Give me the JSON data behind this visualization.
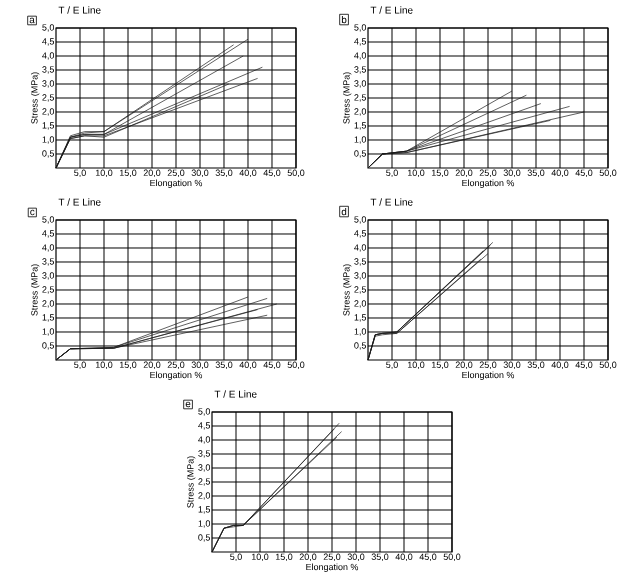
{
  "chart_data": [
    {
      "type": "line",
      "title": "T / E Line",
      "xlabel": "Elongation %",
      "ylabel": "Stress (MPa)",
      "annotations": [
        "a"
      ],
      "grid": true,
      "xlim": [
        0,
        50
      ],
      "ylim": [
        0,
        5
      ],
      "xticks": [
        {
          "value": 5,
          "label": "5,0"
        },
        {
          "value": 10,
          "label": "10,0"
        },
        {
          "value": 15,
          "label": "15,0"
        },
        {
          "value": 20,
          "label": "20,0"
        },
        {
          "value": 25,
          "label": "25,0"
        },
        {
          "value": 30,
          "label": "30,0"
        },
        {
          "value": 35,
          "label": "35,0"
        },
        {
          "value": 40,
          "label": "40,0"
        },
        {
          "value": 45,
          "label": "45,0"
        },
        {
          "value": 50,
          "label": "50,0"
        }
      ],
      "yticks": [
        {
          "value": 0.5,
          "label": "0,5"
        },
        {
          "value": 1,
          "label": "1,0"
        },
        {
          "value": 1.5,
          "label": "1,5"
        },
        {
          "value": 2,
          "label": "2,0"
        },
        {
          "value": 2.5,
          "label": "2,5"
        },
        {
          "value": 3,
          "label": "3,0"
        },
        {
          "value": 3.5,
          "label": "3,5"
        },
        {
          "value": 4,
          "label": "4,0"
        },
        {
          "value": 4.5,
          "label": "4,5"
        },
        {
          "value": 5,
          "label": "5,0"
        }
      ],
      "series": [
        {
          "color": "#1a1a1a",
          "x": [
            0,
            3,
            6,
            10,
            37
          ],
          "values": [
            0,
            1.15,
            1.3,
            1.3,
            4.4
          ]
        },
        {
          "color": "#1a1a1a",
          "x": [
            0,
            3,
            6,
            10,
            40
          ],
          "values": [
            0,
            1.1,
            1.25,
            1.3,
            4.6
          ]
        },
        {
          "color": "#1a1a1a",
          "x": [
            0,
            3,
            6,
            10,
            39
          ],
          "values": [
            0,
            1.1,
            1.2,
            1.2,
            4.0
          ]
        },
        {
          "color": "#1a1a1a",
          "x": [
            0,
            3,
            6,
            10,
            43
          ],
          "values": [
            0,
            1.1,
            1.2,
            1.2,
            3.6
          ]
        },
        {
          "color": "#1a1a1a",
          "x": [
            0,
            3,
            6,
            10,
            42
          ],
          "values": [
            0,
            1.05,
            1.15,
            1.15,
            3.2
          ]
        },
        {
          "color": "#1a1a1a",
          "x": [
            0,
            3,
            6,
            10,
            36
          ],
          "values": [
            0,
            1.05,
            1.15,
            1.1,
            3.0
          ]
        }
      ]
    },
    {
      "type": "line",
      "title": "T / E Line",
      "xlabel": "Elongation %",
      "ylabel": "Stress (MPa)",
      "annotations": [
        "b"
      ],
      "grid": true,
      "xlim": [
        0,
        50
      ],
      "ylim": [
        0,
        5
      ],
      "xticks": [
        {
          "value": 5,
          "label": "5,0"
        },
        {
          "value": 10,
          "label": "10,0"
        },
        {
          "value": 15,
          "label": "15,0"
        },
        {
          "value": 20,
          "label": "20,0"
        },
        {
          "value": 25,
          "label": "25,0"
        },
        {
          "value": 30,
          "label": "30,0"
        },
        {
          "value": 35,
          "label": "35,0"
        },
        {
          "value": 40,
          "label": "40,0"
        },
        {
          "value": 45,
          "label": "45,0"
        },
        {
          "value": 50,
          "label": "50,0"
        }
      ],
      "yticks": [
        {
          "value": 0.5,
          "label": "0,5"
        },
        {
          "value": 1,
          "label": "1,0"
        },
        {
          "value": 1.5,
          "label": "1,5"
        },
        {
          "value": 2,
          "label": "2,0"
        },
        {
          "value": 2.5,
          "label": "2,5"
        },
        {
          "value": 3,
          "label": "3,0"
        },
        {
          "value": 3.5,
          "label": "3,5"
        },
        {
          "value": 4,
          "label": "4,0"
        },
        {
          "value": 4.5,
          "label": "4,5"
        },
        {
          "value": 5,
          "label": "5,0"
        }
      ],
      "series": [
        {
          "color": "#1a1a1a",
          "x": [
            0,
            3,
            8,
            30
          ],
          "values": [
            0,
            0.5,
            0.6,
            2.75
          ]
        },
        {
          "color": "#1a1a1a",
          "x": [
            0,
            3,
            8,
            33
          ],
          "values": [
            0,
            0.5,
            0.6,
            2.6
          ]
        },
        {
          "color": "#1a1a1a",
          "x": [
            0,
            3,
            8,
            36
          ],
          "values": [
            0,
            0.5,
            0.6,
            2.3
          ]
        },
        {
          "color": "#1a1a1a",
          "x": [
            0,
            3,
            8,
            42
          ],
          "values": [
            0,
            0.5,
            0.6,
            2.2
          ]
        },
        {
          "color": "#1a1a1a",
          "x": [
            0,
            3,
            8,
            45
          ],
          "values": [
            0,
            0.5,
            0.55,
            2.0
          ]
        },
        {
          "color": "#1a1a1a",
          "x": [
            0,
            3,
            8,
            38
          ],
          "values": [
            0,
            0.5,
            0.55,
            1.7
          ]
        }
      ]
    },
    {
      "type": "line",
      "title": "T / E Line",
      "xlabel": "Elongation %",
      "ylabel": "Stress (MPa)",
      "annotations": [
        "c"
      ],
      "grid": true,
      "xlim": [
        0,
        50
      ],
      "ylim": [
        0,
        5
      ],
      "xticks": [
        {
          "value": 5,
          "label": "5,0"
        },
        {
          "value": 10,
          "label": "10,0"
        },
        {
          "value": 15,
          "label": "15,0"
        },
        {
          "value": 20,
          "label": "20,0"
        },
        {
          "value": 25,
          "label": "25,0"
        },
        {
          "value": 30,
          "label": "30,0"
        },
        {
          "value": 35,
          "label": "35,0"
        },
        {
          "value": 40,
          "label": "40,0"
        },
        {
          "value": 45,
          "label": "45,0"
        },
        {
          "value": 50,
          "label": "50,0"
        }
      ],
      "yticks": [
        {
          "value": 0.5,
          "label": "0,5"
        },
        {
          "value": 1,
          "label": "1,0"
        },
        {
          "value": 1.5,
          "label": "1,5"
        },
        {
          "value": 2,
          "label": "2,0"
        },
        {
          "value": 2.5,
          "label": "2,5"
        },
        {
          "value": 3,
          "label": "3,0"
        },
        {
          "value": 3.5,
          "label": "3,5"
        },
        {
          "value": 4,
          "label": "4,0"
        },
        {
          "value": 4.5,
          "label": "4,5"
        },
        {
          "value": 5,
          "label": "5,0"
        }
      ],
      "series": [
        {
          "color": "#1a1a1a",
          "x": [
            0,
            3,
            12,
            40
          ],
          "values": [
            0,
            0.4,
            0.45,
            2.25
          ]
        },
        {
          "color": "#1a1a1a",
          "x": [
            0,
            3,
            12,
            44
          ],
          "values": [
            0,
            0.4,
            0.45,
            2.2
          ]
        },
        {
          "color": "#1a1a1a",
          "x": [
            0,
            3,
            12,
            46
          ],
          "values": [
            0,
            0.4,
            0.42,
            2.0
          ]
        },
        {
          "color": "#1a1a1a",
          "x": [
            0,
            3,
            12,
            42
          ],
          "values": [
            0,
            0.4,
            0.42,
            1.8
          ]
        },
        {
          "color": "#1a1a1a",
          "x": [
            0,
            3,
            12,
            44
          ],
          "values": [
            0,
            0.4,
            0.42,
            1.6
          ]
        }
      ]
    },
    {
      "type": "line",
      "title": "T / E Line",
      "xlabel": "Elongation %",
      "ylabel": "Stress (MPa)",
      "annotations": [
        "d"
      ],
      "grid": true,
      "xlim": [
        0,
        50
      ],
      "ylim": [
        0,
        5
      ],
      "xticks": [
        {
          "value": 5,
          "label": "5,0"
        },
        {
          "value": 10,
          "label": "10,0"
        },
        {
          "value": 15,
          "label": "15,0"
        },
        {
          "value": 20,
          "label": "20,0"
        },
        {
          "value": 25,
          "label": "25,0"
        },
        {
          "value": 30,
          "label": "30,0"
        },
        {
          "value": 35,
          "label": "35,0"
        },
        {
          "value": 40,
          "label": "40,0"
        },
        {
          "value": 45,
          "label": "45,0"
        },
        {
          "value": 50,
          "label": "50,0"
        }
      ],
      "yticks": [
        {
          "value": 0.5,
          "label": "0,5"
        },
        {
          "value": 1,
          "label": "1,0"
        },
        {
          "value": 1.5,
          "label": "1,5"
        },
        {
          "value": 2,
          "label": "2,0"
        },
        {
          "value": 2.5,
          "label": "2,5"
        },
        {
          "value": 3,
          "label": "3,0"
        },
        {
          "value": 3.5,
          "label": "3,5"
        },
        {
          "value": 4,
          "label": "4,0"
        },
        {
          "value": 4.5,
          "label": "4,5"
        },
        {
          "value": 5,
          "label": "5,0"
        }
      ],
      "series": [
        {
          "color": "#1a1a1a",
          "x": [
            0,
            1.5,
            3,
            6,
            25.5
          ],
          "values": [
            0,
            0.9,
            0.95,
            1.0,
            4.1
          ]
        },
        {
          "color": "#1a1a1a",
          "x": [
            0,
            1.5,
            3,
            6,
            24
          ],
          "values": [
            0,
            0.9,
            0.95,
            1.0,
            3.9
          ]
        },
        {
          "color": "#1a1a1a",
          "x": [
            0,
            1.5,
            3,
            6,
            25
          ],
          "values": [
            0,
            0.9,
            0.95,
            0.95,
            3.8
          ]
        },
        {
          "color": "#1a1a1a",
          "x": [
            0,
            1.5,
            3,
            6,
            23.5
          ],
          "values": [
            0,
            0.85,
            0.9,
            0.95,
            3.6
          ]
        },
        {
          "color": "#1a1a1a",
          "x": [
            0,
            1.5,
            3,
            6,
            26
          ],
          "values": [
            0,
            0.9,
            0.95,
            1.0,
            4.2
          ]
        }
      ]
    },
    {
      "type": "line",
      "title": "T / E Line",
      "xlabel": "Elongation %",
      "ylabel": "Stress (MPa)",
      "annotations": [
        "e"
      ],
      "grid": true,
      "xlim": [
        0,
        50
      ],
      "ylim": [
        0,
        5
      ],
      "xticks": [
        {
          "value": 5,
          "label": "5,0"
        },
        {
          "value": 10,
          "label": "10,0"
        },
        {
          "value": 15,
          "label": "15,0"
        },
        {
          "value": 20,
          "label": "20,0"
        },
        {
          "value": 25,
          "label": "25,0"
        },
        {
          "value": 30,
          "label": "30,0"
        },
        {
          "value": 35,
          "label": "35,0"
        },
        {
          "value": 40,
          "label": "40,0"
        },
        {
          "value": 45,
          "label": "45,0"
        },
        {
          "value": 50,
          "label": "50,0"
        }
      ],
      "yticks": [
        {
          "value": 0.5,
          "label": "0,5"
        },
        {
          "value": 1,
          "label": "1,0"
        },
        {
          "value": 1.5,
          "label": "1,5"
        },
        {
          "value": 2,
          "label": "2,0"
        },
        {
          "value": 2.5,
          "label": "2,5"
        },
        {
          "value": 3,
          "label": "3,0"
        },
        {
          "value": 3.5,
          "label": "3,5"
        },
        {
          "value": 4,
          "label": "4,0"
        },
        {
          "value": 4.5,
          "label": "4,5"
        },
        {
          "value": 5,
          "label": "5,0"
        }
      ],
      "series": [
        {
          "color": "#1a1a1a",
          "x": [
            0,
            2.5,
            4.5,
            6.5,
            26.5
          ],
          "values": [
            0,
            0.85,
            0.95,
            0.95,
            4.6
          ]
        },
        {
          "color": "#1a1a1a",
          "x": [
            0,
            2.5,
            4.5,
            6.5,
            27
          ],
          "values": [
            0,
            0.85,
            0.95,
            0.95,
            4.3
          ]
        },
        {
          "color": "#1a1a1a",
          "x": [
            0,
            2.5,
            4.5,
            6.5,
            25.5
          ],
          "values": [
            0,
            0.85,
            0.95,
            0.95,
            4.4
          ]
        },
        {
          "color": "#1a1a1a",
          "x": [
            0,
            2.5,
            4.5,
            6.5,
            26
          ],
          "values": [
            0,
            0.85,
            0.9,
            0.95,
            4.1
          ]
        }
      ]
    }
  ]
}
